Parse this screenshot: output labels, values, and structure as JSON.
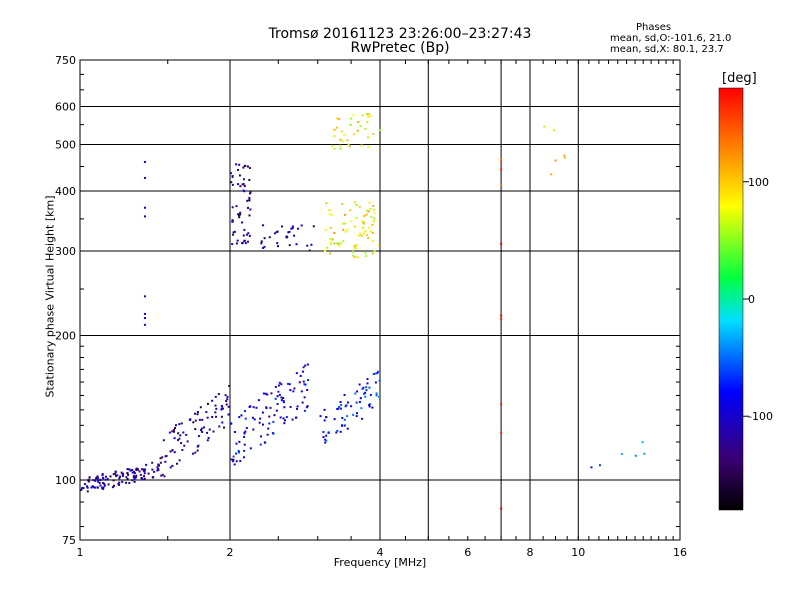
{
  "header": {
    "title_line1": "Tromsø 20161123 23:26:00–23:27:43",
    "title_line2": "RwPretec (Bp)"
  },
  "phases_box": {
    "title": "Phases",
    "line1": "mean, sd,O:-101.6, 21.0",
    "line2": "mean, sd,X:  80.1, 23.7"
  },
  "colorbar": {
    "label": "[deg]",
    "ticks": [
      {
        "value": 100,
        "label": "100"
      },
      {
        "value": 0,
        "label": "0"
      },
      {
        "value": -100,
        "label": "-100"
      }
    ],
    "range": [
      -180,
      180
    ],
    "colormap": "rainbow"
  },
  "chart_data": {
    "type": "scatter",
    "title": "Tromsø 20161123 23:26:00–23:27:43",
    "subtitle": "RwPretec (Bp)",
    "xlabel": "Frequency [MHz]",
    "ylabel": "Stationary phase Virtual Height [km]",
    "x_scale": "log",
    "y_scale": "log",
    "xlim": [
      1,
      16
    ],
    "ylim": [
      75,
      750
    ],
    "x_ticks": [
      1,
      2,
      4,
      6,
      8,
      10,
      16
    ],
    "y_ticks": [
      75,
      100,
      200,
      300,
      400,
      500,
      600,
      750
    ],
    "grid": true,
    "color_variable": "phase [deg]",
    "clusters": [
      {
        "mode": "O",
        "freq_range": [
          1.0,
          1.45
        ],
        "height_range": [
          93,
          110
        ],
        "mean_phase": -120,
        "n": 120
      },
      {
        "mode": "O",
        "freq_range": [
          1.45,
          2.0
        ],
        "height_range": [
          100,
          160
        ],
        "mean_phase": -120,
        "n": 90
      },
      {
        "mode": "O",
        "freq_range": [
          2.0,
          2.9
        ],
        "height_range": [
          105,
          180
        ],
        "mean_phase": -95,
        "n": 110
      },
      {
        "mode": "O",
        "freq_range": [
          3.0,
          4.0
        ],
        "height_range": [
          115,
          170
        ],
        "mean_phase": -75,
        "n": 70
      },
      {
        "mode": "O",
        "freq_range": [
          2.0,
          2.2
        ],
        "height_range": [
          310,
          460
        ],
        "mean_phase": -125,
        "n": 60
      },
      {
        "mode": "O",
        "freq_range": [
          2.3,
          3.0
        ],
        "height_range": [
          300,
          340
        ],
        "mean_phase": -120,
        "n": 30
      },
      {
        "mode": "X",
        "freq_range": [
          3.1,
          4.0
        ],
        "height_range": [
          290,
          380
        ],
        "mean_phase": 85,
        "n": 80
      },
      {
        "mode": "X",
        "freq_range": [
          3.2,
          4.0
        ],
        "height_range": [
          490,
          580
        ],
        "mean_phase": 80,
        "n": 35
      },
      {
        "mode": "O",
        "freq_range": [
          1.35,
          1.35
        ],
        "height_range": [
          200,
          500
        ],
        "mean_phase": -115,
        "n": 8
      },
      {
        "mode": "X",
        "freq_range": [
          7.0,
          7.0
        ],
        "height_range": [
          85,
          500
        ],
        "mean_phase": 160,
        "n": 10
      },
      {
        "mode": "X",
        "freq_range": [
          8.5,
          9.5
        ],
        "height_range": [
          430,
          560
        ],
        "mean_phase": 120,
        "n": 6
      },
      {
        "mode": "O",
        "freq_range": [
          10.5,
          14.5
        ],
        "height_range": [
          105,
          125
        ],
        "mean_phase": -50,
        "n": 6
      }
    ]
  }
}
